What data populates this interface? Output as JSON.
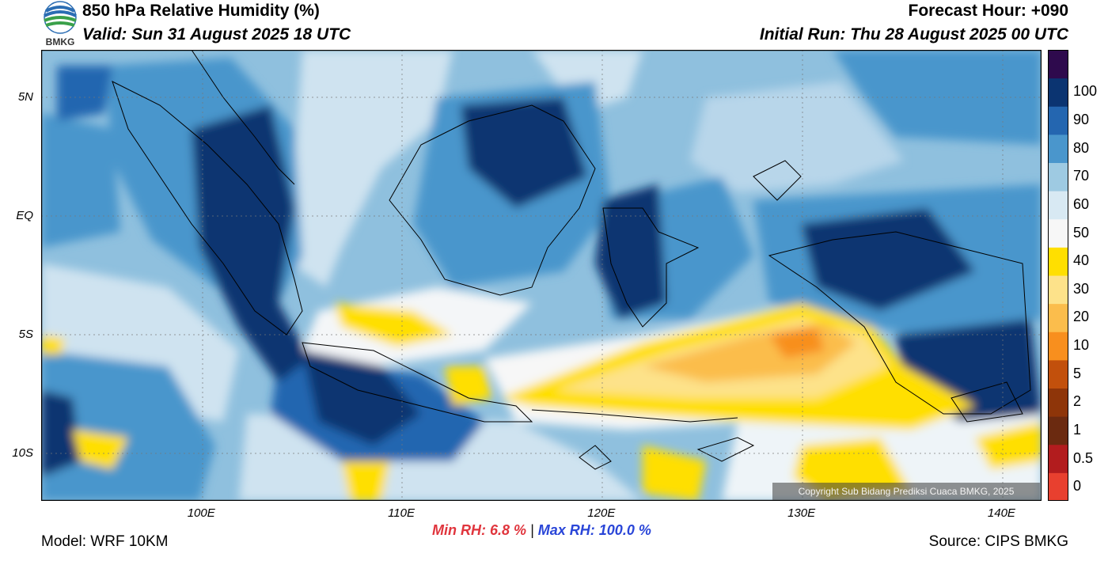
{
  "header": {
    "logo_text": "BMKG",
    "title": "850 hPa Relative Humidity (%)",
    "valid": "Valid: Sun 31 August 2025 18 UTC",
    "forecast_hour": "Forecast Hour: +090",
    "initial_run": "Initial Run: Thu 28 August 2025 00 UTC"
  },
  "map": {
    "lon_range": [
      92,
      142
    ],
    "lat_range": [
      -12,
      7
    ],
    "lat_ticks": [
      {
        "value": 5,
        "label": "5N"
      },
      {
        "value": 0,
        "label": "EQ"
      },
      {
        "value": -5,
        "label": "5S"
      },
      {
        "value": -10,
        "label": "10S"
      }
    ],
    "lon_ticks": [
      {
        "value": 100,
        "label": "100E"
      },
      {
        "value": 110,
        "label": "110E"
      },
      {
        "value": 120,
        "label": "120E"
      },
      {
        "value": 130,
        "label": "130E"
      },
      {
        "value": 140,
        "label": "140E"
      }
    ],
    "grid": true,
    "copyright": "Copyright Sub Bidang Prediksi Cuaca BMKG, 2025"
  },
  "colorbar": {
    "levels": [
      "0",
      "0.5",
      "1",
      "2",
      "5",
      "10",
      "20",
      "30",
      "40",
      "50",
      "60",
      "70",
      "80",
      "90",
      "100"
    ],
    "colors": [
      "#e8402f",
      "#b21c1e",
      "#6b2a10",
      "#8e3509",
      "#c2500c",
      "#f88f1e",
      "#fbbd4c",
      "#fde28a",
      "#ffdf00",
      "#f7f7f7",
      "#d8e9f3",
      "#9ecae2",
      "#4a96cc",
      "#2466b0",
      "#0b3471",
      "#2e0a4d"
    ]
  },
  "footer": {
    "model": "Model: WRF 10KM",
    "source": "Source: CIPS BMKG",
    "min_label": "Min RH:",
    "min_value": "6.8 %",
    "separator": "|",
    "max_label": "Max RH:",
    "max_value": "100.0 %"
  }
}
